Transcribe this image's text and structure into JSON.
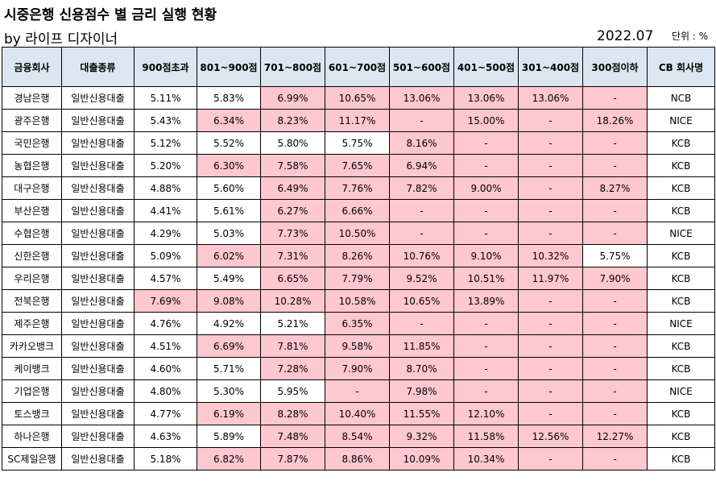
{
  "title": "시중은행 신용점수 별 금리 실행 현황",
  "subtitle": "by 라이프 디자이너",
  "date": "2022.07",
  "unit": "단위 : %",
  "colors": {
    "header_bg": "#dce6f1",
    "highlight": "#ffc7ce"
  },
  "headers": [
    "금융회사",
    "대출종류",
    "900점초과",
    "801~900점",
    "701~800점",
    "601~700점",
    "501~600점",
    "401~500점",
    "301~400점",
    "300점이하",
    "CB 회사명"
  ],
  "rows": [
    {
      "cells": [
        "경남은행",
        "일반신용대출",
        "5.11%",
        "5.83%",
        "6.99%",
        "10.65%",
        "13.06%",
        "13.06%",
        "13.06%",
        "-",
        "NCB"
      ],
      "hl": [
        4,
        5,
        6,
        7,
        8,
        9
      ]
    },
    {
      "cells": [
        "광주은행",
        "일반신용대출",
        "5.43%",
        "6.34%",
        "8.23%",
        "11.17%",
        "-",
        "15.00%",
        "-",
        "18.26%",
        " NICE"
      ],
      "hl": [
        3,
        4,
        5,
        6,
        7,
        8,
        9
      ]
    },
    {
      "cells": [
        "국민은행",
        "일반신용대출",
        "5.12%",
        "5.52%",
        "5.80%",
        "5.75%",
        "8.16%",
        "-",
        "-",
        "-",
        "KCB"
      ],
      "hl": [
        6,
        7,
        8,
        9
      ]
    },
    {
      "cells": [
        "농협은행",
        "일반신용대출",
        "5.20%",
        "6.30%",
        "7.58%",
        "7.65%",
        "6.94%",
        "-",
        "-",
        "-",
        "KCB"
      ],
      "hl": [
        3,
        4,
        5,
        6,
        7,
        8,
        9
      ]
    },
    {
      "cells": [
        "대구은행",
        "일반신용대출",
        "4.88%",
        "5.60%",
        "6.49%",
        "7.76%",
        "7.82%",
        "9.00%",
        "-",
        "8.27%",
        "KCB"
      ],
      "hl": [
        4,
        5,
        6,
        7,
        8,
        9
      ]
    },
    {
      "cells": [
        "부산은행",
        "일반신용대출",
        "4.41%",
        "5.61%",
        "6.27%",
        "6.66%",
        "-",
        "-",
        "-",
        "-",
        "KCB"
      ],
      "hl": [
        4,
        5,
        6,
        7,
        8,
        9
      ]
    },
    {
      "cells": [
        "수협은행",
        "일반신용대출",
        "4.29%",
        "5.03%",
        "7.73%",
        "10.50%",
        "-",
        "-",
        "-",
        "-",
        "NICE"
      ],
      "hl": [
        4,
        5,
        6,
        7,
        8,
        9
      ]
    },
    {
      "cells": [
        "신한은행",
        "일반신용대출",
        "5.09%",
        "6.02%",
        "7.31%",
        "8.26%",
        "10.76%",
        "9.10%",
        "10.32%",
        "5.75%",
        "KCB"
      ],
      "hl": [
        3,
        4,
        5,
        6,
        7,
        8
      ]
    },
    {
      "cells": [
        "우리은행",
        "일반신용대출",
        "4.57%",
        "5.49%",
        "6.65%",
        "7.79%",
        "9.52%",
        "10.51%",
        "11.97%",
        "7.90%",
        "KCB"
      ],
      "hl": [
        4,
        5,
        6,
        7,
        8,
        9
      ]
    },
    {
      "cells": [
        "전북은행",
        "일반신용대출",
        "7.69%",
        "9.08%",
        "10.28%",
        "10.58%",
        "10.65%",
        "13.89%",
        "-",
        "-",
        "KCB"
      ],
      "hl": [
        2,
        3,
        4,
        5,
        6,
        7,
        8,
        9
      ]
    },
    {
      "cells": [
        "제주은행",
        "일반신용대출",
        "4.76%",
        "4.92%",
        "5.21%",
        "6.35%",
        "-",
        "-",
        "-",
        "-",
        "NICE"
      ],
      "hl": [
        5,
        6,
        7,
        8,
        9
      ]
    },
    {
      "cells": [
        "카카오뱅크",
        "일반신용대출",
        "4.51%",
        "6.69%",
        "7.81%",
        "9.58%",
        "11.85%",
        "-",
        "-",
        "-",
        "KCB"
      ],
      "hl": [
        3,
        4,
        5,
        6,
        7,
        8,
        9
      ]
    },
    {
      "cells": [
        "케이뱅크",
        "일반신용대출",
        "4.60%",
        "5.71%",
        "7.28%",
        "7.90%",
        "8.70%",
        "-",
        "-",
        "-",
        "KCB"
      ],
      "hl": [
        4,
        5,
        6,
        7,
        8,
        9
      ]
    },
    {
      "cells": [
        "기업은행",
        "일반신용대출",
        "4.80%",
        "5.30%",
        "5.95%",
        "-",
        "7.98%",
        "-",
        "-",
        "-",
        "NICE"
      ],
      "hl": [
        5,
        6,
        7,
        8,
        9
      ]
    },
    {
      "cells": [
        "토스뱅크",
        "일반신용대출",
        "4.77%",
        "6.19%",
        "8.28%",
        "10.40%",
        "11.55%",
        "12.10%",
        "-",
        "-",
        "KCB"
      ],
      "hl": [
        3,
        4,
        5,
        6,
        7,
        8,
        9
      ]
    },
    {
      "cells": [
        "하나은행",
        "일반신용대출",
        "4.63%",
        "5.89%",
        "7.48%",
        "8.54%",
        "9.32%",
        "11.58%",
        "12.56%",
        "12.27%",
        "KCB"
      ],
      "hl": [
        4,
        5,
        6,
        7,
        8,
        9
      ]
    },
    {
      "cells": [
        "SC제일은행",
        "일반신용대출",
        "5.18%",
        "6.82%",
        "7.87%",
        "8.86%",
        "10.09%",
        "10.34%",
        "-",
        "-",
        "KCB"
      ],
      "hl": [
        3,
        4,
        5,
        6,
        7,
        8,
        9
      ]
    }
  ]
}
